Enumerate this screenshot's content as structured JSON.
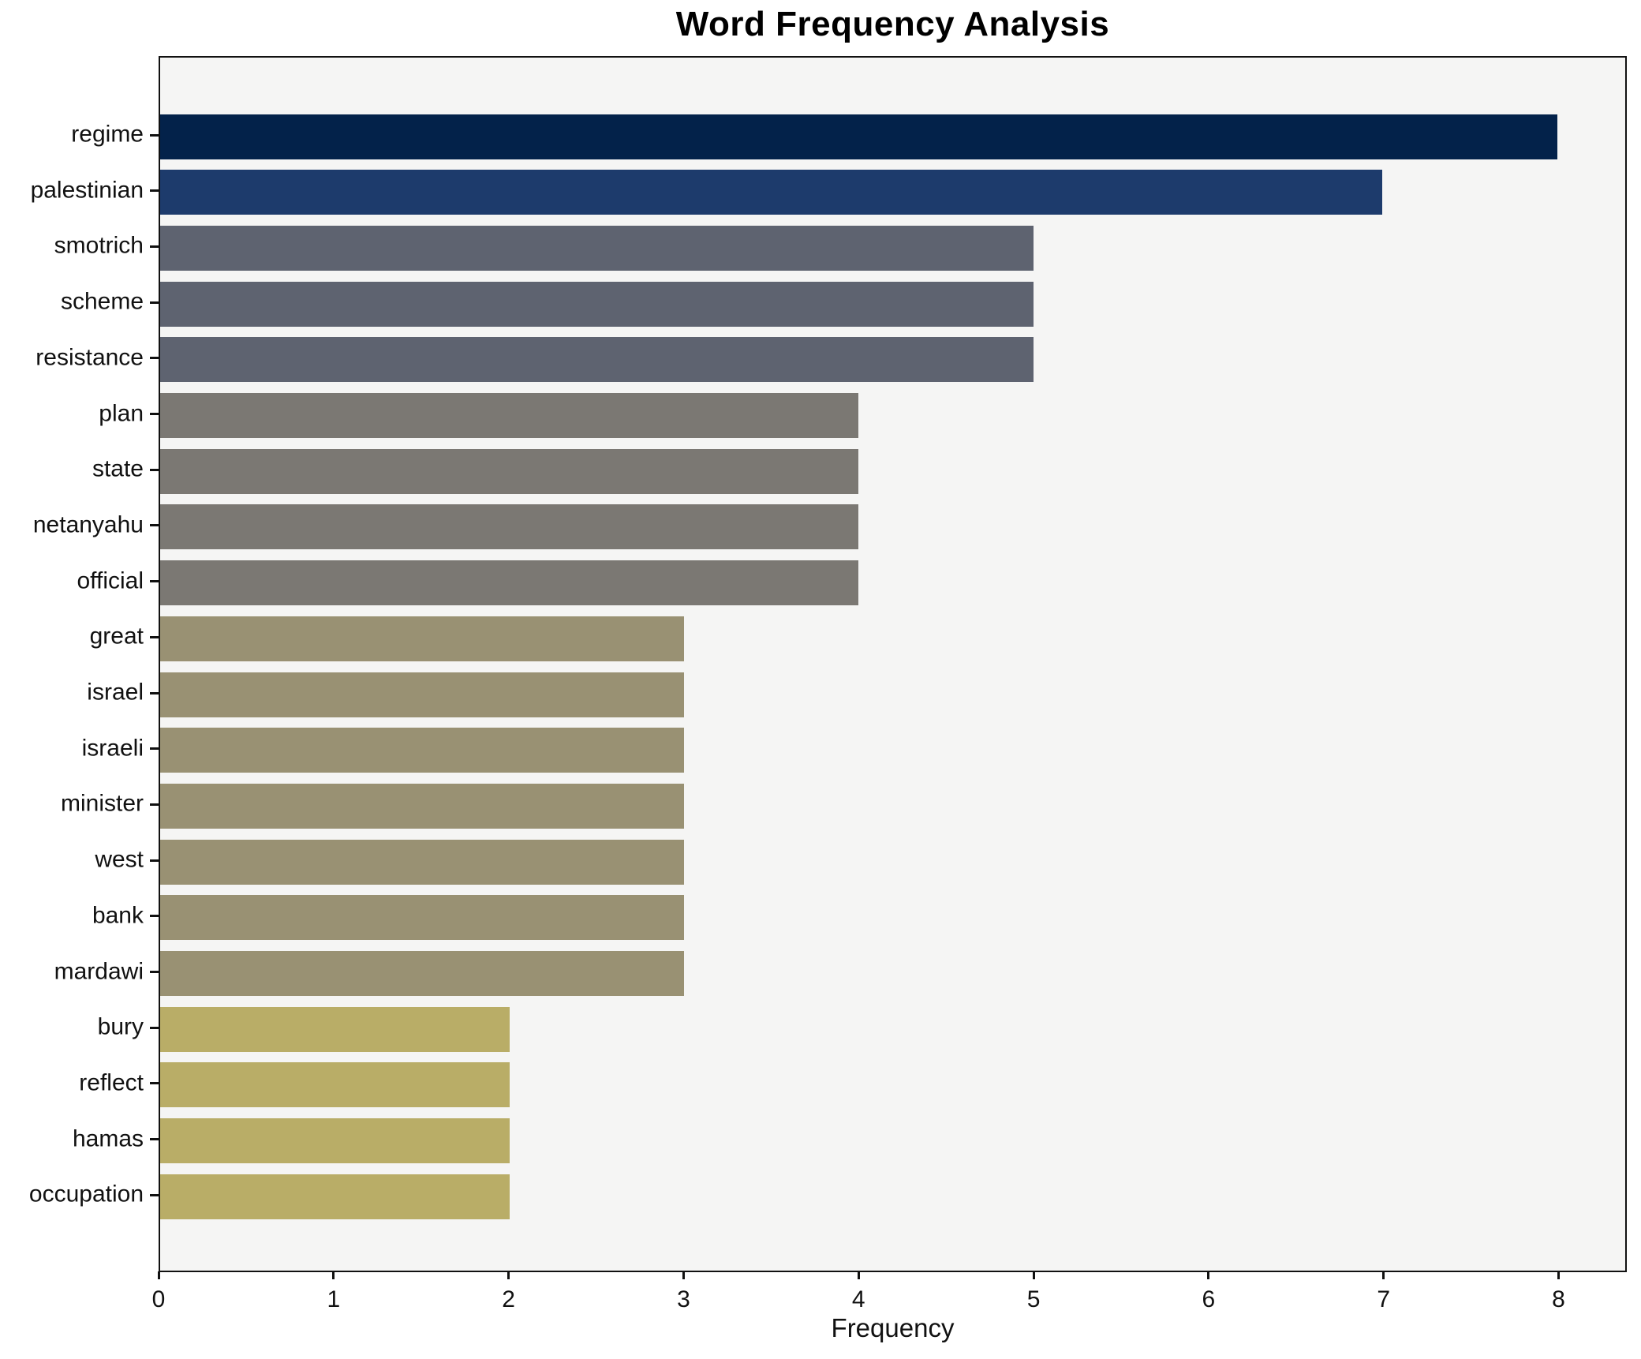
{
  "header": {
    "title": "Word Frequency Analysis"
  },
  "chart_data": {
    "type": "bar",
    "orientation": "horizontal",
    "title": "Word Frequency Analysis",
    "xlabel": "Frequency",
    "ylabel": "",
    "categories": [
      "regime",
      "palestinian",
      "smotrich",
      "scheme",
      "resistance",
      "plan",
      "state",
      "netanyahu",
      "official",
      "great",
      "israel",
      "israeli",
      "minister",
      "west",
      "bank",
      "mardawi",
      "bury",
      "reflect",
      "hamas",
      "occupation"
    ],
    "values": [
      8,
      7,
      5,
      5,
      5,
      4,
      4,
      4,
      4,
      3,
      3,
      3,
      3,
      3,
      3,
      3,
      2,
      2,
      2,
      2
    ],
    "bar_colors": [
      "#03224a",
      "#1d3b6c",
      "#5e6370",
      "#5e6370",
      "#5e6370",
      "#7b7873",
      "#7b7873",
      "#7b7873",
      "#7b7873",
      "#999173",
      "#999173",
      "#999173",
      "#999173",
      "#999173",
      "#999173",
      "#999173",
      "#b9ad67",
      "#b9ad67",
      "#b9ad67",
      "#b9ad67"
    ],
    "x_ticks": [
      0,
      1,
      2,
      3,
      4,
      5,
      6,
      7,
      8
    ],
    "xlim": [
      0,
      8.39
    ],
    "grid": false,
    "legend_position": "none",
    "plot_background": "#f5f5f4",
    "figure_background": "#ffffff",
    "spine_color": "#111111",
    "text_color": "#111111"
  }
}
